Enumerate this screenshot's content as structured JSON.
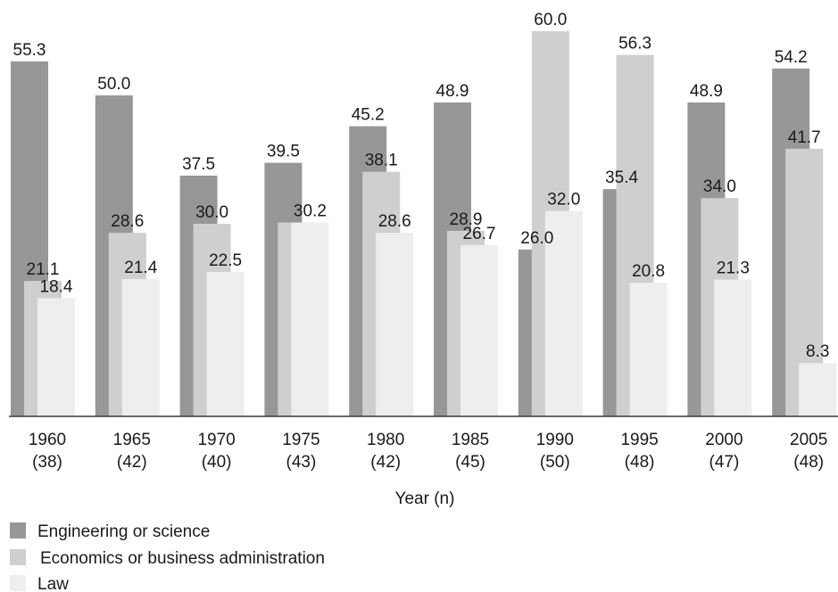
{
  "chart_data": {
    "type": "bar",
    "title": "",
    "xlabel": "Year (n)",
    "ylabel": "",
    "ylim": [
      0,
      62
    ],
    "grid": false,
    "legend_position": "bottom-left",
    "categories": [
      {
        "year": "1960",
        "n": "(38)"
      },
      {
        "year": "1965",
        "n": "(42)"
      },
      {
        "year": "1970",
        "n": "(40)"
      },
      {
        "year": "1975",
        "n": "(43)"
      },
      {
        "year": "1980",
        "n": "(42)"
      },
      {
        "year": "1985",
        "n": "(45)"
      },
      {
        "year": "1990",
        "n": "(50)"
      },
      {
        "year": "1995",
        "n": "(48)"
      },
      {
        "year": "2000",
        "n": "(47)"
      },
      {
        "year": "2005",
        "n": "(48)"
      }
    ],
    "series": [
      {
        "name": "Engineering or science",
        "color": "#979797",
        "values": [
          55.3,
          50.0,
          37.5,
          39.5,
          45.2,
          48.9,
          26.0,
          35.4,
          48.9,
          54.2
        ]
      },
      {
        "name": "Economics or business administration",
        "color": "#cfcfcf",
        "values": [
          21.1,
          28.6,
          30.0,
          30.2,
          38.1,
          28.9,
          60.0,
          56.3,
          34.0,
          41.7
        ]
      },
      {
        "name": "Law",
        "color": "#eeeeef",
        "values": [
          18.4,
          21.4,
          22.5,
          30.2,
          28.6,
          26.7,
          32.0,
          20.8,
          21.3,
          8.3
        ]
      }
    ],
    "label_text": [
      [
        "55.3",
        "50.0",
        "37.5",
        "39.5",
        "45.2",
        "48.9",
        "26.0",
        "35.4",
        "48.9",
        "54.2"
      ],
      [
        "21.1",
        "28.6",
        "30.0",
        "",
        "38.1",
        "28.9",
        "60.0",
        "56.3",
        "34.0",
        "41.7"
      ],
      [
        "18.4",
        "21.4",
        "22.5",
        "30.2",
        "28.6",
        "26.7",
        "32.0",
        "20.8",
        "21.3",
        "8.3"
      ]
    ]
  }
}
